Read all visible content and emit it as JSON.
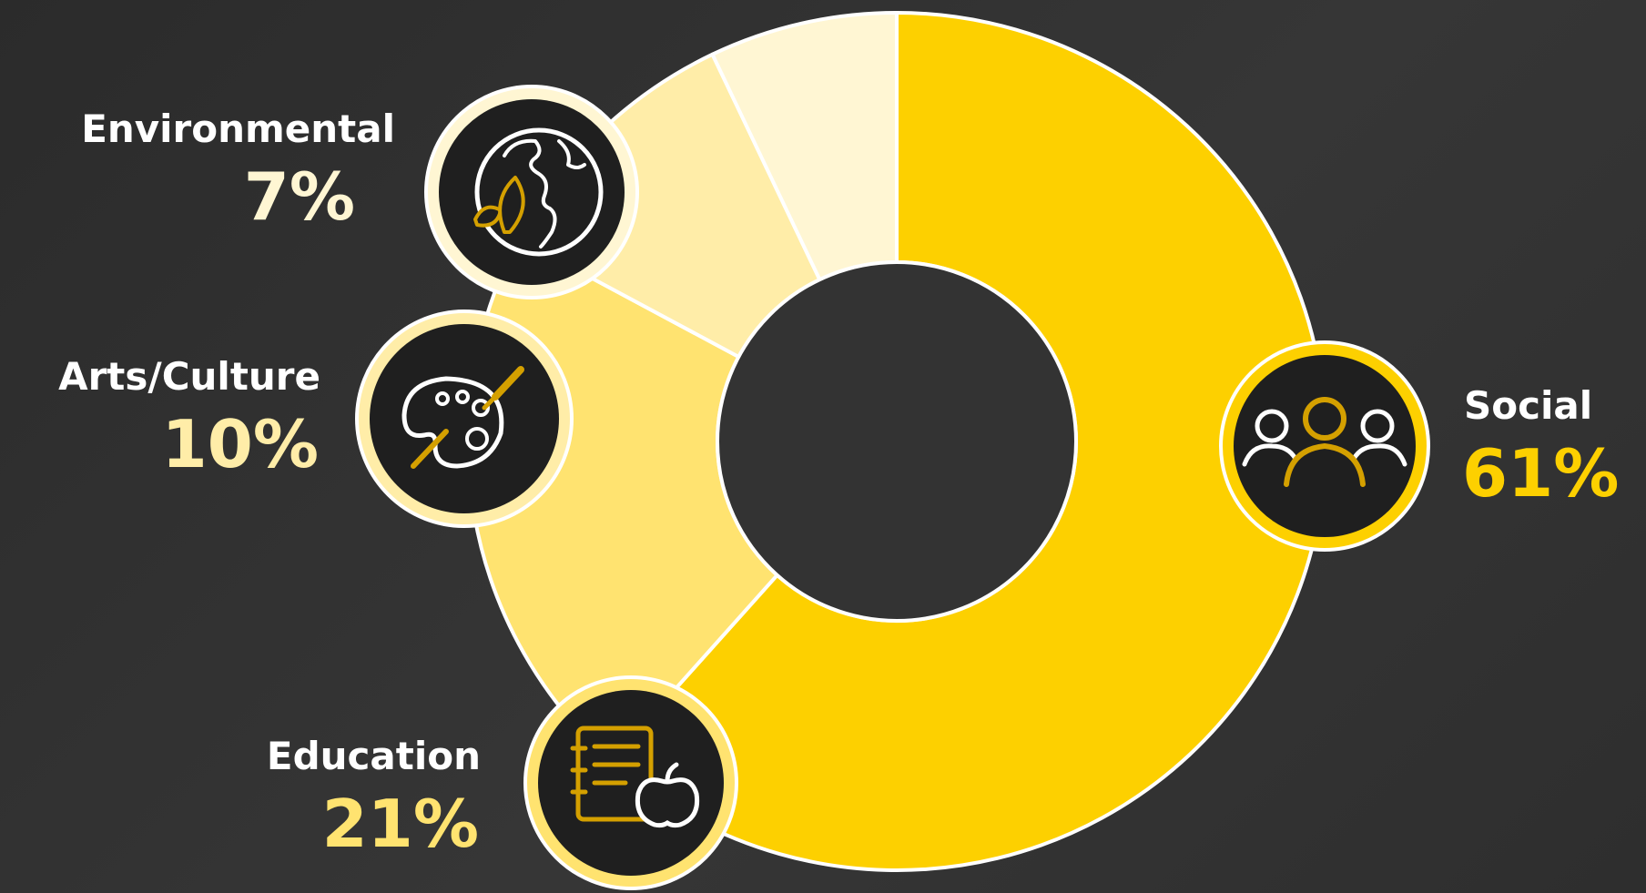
{
  "chart_data": {
    "type": "pie",
    "title": "",
    "categories": [
      "Social",
      "Education",
      "Arts/Culture",
      "Environmental"
    ],
    "values": [
      61,
      21,
      10,
      7
    ],
    "value_labels": [
      "61%",
      "21%",
      "10%",
      "7%"
    ],
    "colors": [
      "#fdd000",
      "#ffe370",
      "#ffeda8",
      "#fff6d3"
    ],
    "label_colors": [
      "#fdd000",
      "#ffe370",
      "#ffeda8",
      "#fff6d3"
    ],
    "icons": [
      "people-icon",
      "notebook-apple-icon",
      "palette-icon",
      "globe-leaf-icon"
    ],
    "donut": true
  }
}
